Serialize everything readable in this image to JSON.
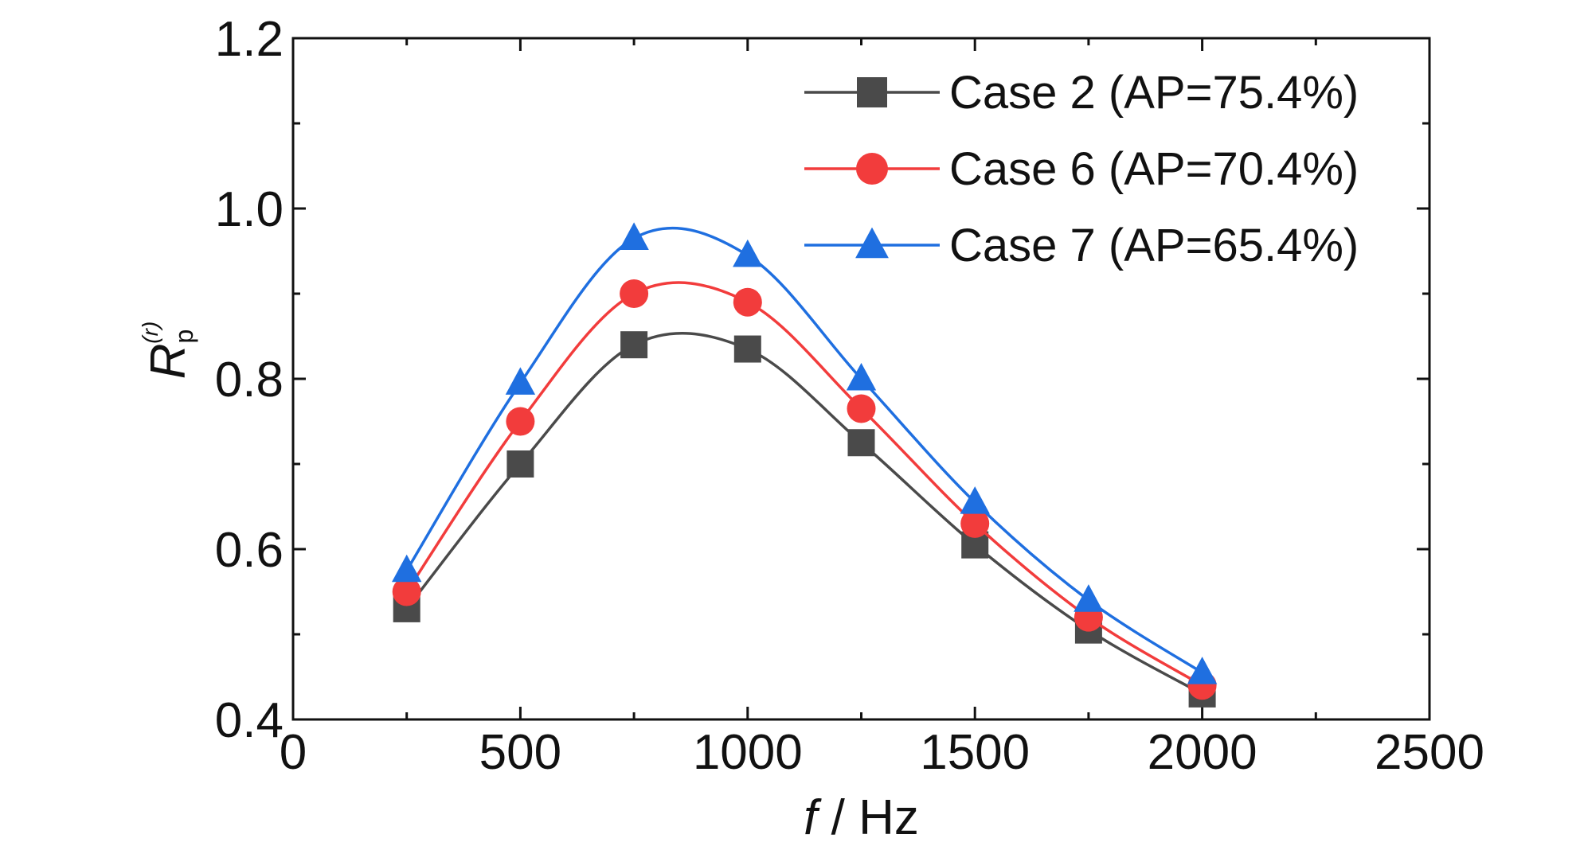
{
  "chart_data": {
    "type": "line",
    "x": [
      250,
      500,
      750,
      1000,
      1250,
      1500,
      1750,
      2000
    ],
    "series": [
      {
        "name": "Case 2 (AP=75.4%)",
        "marker": "square",
        "color": "#4a4a4a",
        "values": [
          0.53,
          0.7,
          0.84,
          0.835,
          0.725,
          0.605,
          0.505,
          0.43
        ]
      },
      {
        "name": "Case 6 (AP=70.4%)",
        "marker": "circle",
        "color": "#f23c3c",
        "values": [
          0.55,
          0.75,
          0.9,
          0.89,
          0.765,
          0.63,
          0.52,
          0.44
        ]
      },
      {
        "name": "Case 7 (AP=65.4%)",
        "marker": "triangle",
        "color": "#1f6fe0",
        "values": [
          0.575,
          0.795,
          0.965,
          0.945,
          0.8,
          0.655,
          0.54,
          0.455
        ]
      }
    ],
    "xlabel": {
      "italic": "f",
      "rest": " / Hz"
    },
    "ylabel": {
      "main": "R",
      "sub": "p",
      "sup": "(r)"
    },
    "xlim": [
      0,
      2500
    ],
    "ylim": [
      0.4,
      1.2
    ],
    "xticks": [
      "0",
      "500",
      "1000",
      "1500",
      "2000",
      "2500"
    ],
    "yticks": [
      "0.4",
      "0.6",
      "0.8",
      "1.0",
      "1.2"
    ],
    "grid": false,
    "legend_position": "top-right"
  }
}
